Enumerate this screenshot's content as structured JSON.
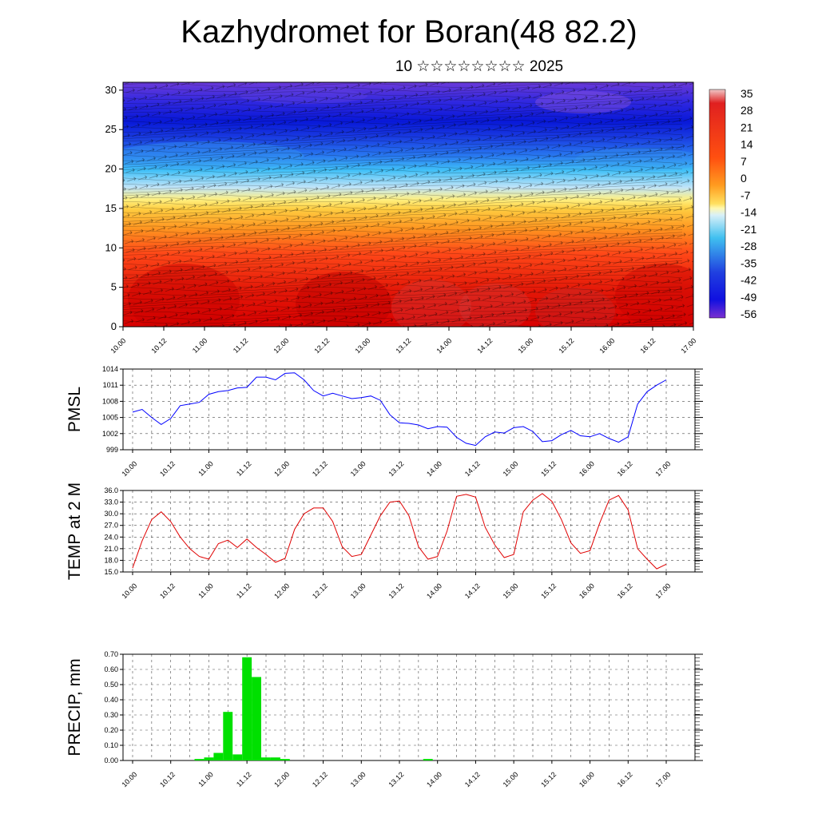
{
  "title": "Kazhydromet for Boran(48 82.2)",
  "subtitle": "10 ☆☆☆☆☆☆☆☆ 2025",
  "x_tick_labels": [
    "10.00",
    "10.12",
    "11.00",
    "11.12",
    "12.00",
    "12.12",
    "13.00",
    "13.12",
    "14.00",
    "14.12",
    "15.00",
    "15.12",
    "16.00",
    "16.12",
    "17.00"
  ],
  "chart_data": [
    {
      "type": "heatmap",
      "name": "cross-section",
      "y_ticks": [
        0,
        5,
        10,
        15,
        20,
        25,
        30
      ],
      "ylim": [
        0,
        31
      ],
      "x": [
        "10.00",
        "10.12",
        "11.00",
        "11.12",
        "12.00",
        "12.12",
        "13.00",
        "13.12",
        "14.00",
        "14.12",
        "15.00",
        "15.12",
        "16.00",
        "16.12",
        "17.00"
      ],
      "colorbar_labels": [
        "35",
        "28",
        "21",
        "14",
        "7",
        "0",
        "-7",
        "-14",
        "-21",
        "-28",
        "-35",
        "-42",
        "-49",
        "-56"
      ],
      "colors": {
        "hot": "#e00000",
        "warm": "#ff8a10",
        "yellow": "#ffe060",
        "cold_light": "#40c8f8",
        "cold": "#1020e0",
        "coldest": "#6030d0"
      }
    },
    {
      "type": "line",
      "ylabel": "PMSL",
      "y_ticks": [
        999,
        1002,
        1005,
        1008,
        1011,
        1014
      ],
      "ylim": [
        999,
        1014
      ],
      "color": "#0000ff",
      "values": [
        1006,
        1006.5,
        1005,
        1003.7,
        1004.8,
        1007.2,
        1007.5,
        1007.8,
        1009.3,
        1009.8,
        1010,
        1010.5,
        1010.6,
        1012.5,
        1012.5,
        1012,
        1013.2,
        1013.3,
        1012,
        1010,
        1009,
        1009.5,
        1009,
        1008.5,
        1008.7,
        1009,
        1008.2,
        1005.5,
        1004,
        1003.9,
        1003.6,
        1002.9,
        1003.3,
        1003.2,
        1001.3,
        1000.2,
        999.8,
        1001.4,
        1002.3,
        1002.1,
        1003.1,
        1003.3,
        1002.4,
        1000.5,
        1000.7,
        1001.8,
        1002.6,
        1001.6,
        1001.4,
        1002,
        1001.1,
        1000.4,
        1001.4,
        1007.5,
        1009.8,
        1011,
        1012
      ]
    },
    {
      "type": "line",
      "ylabel": "TEMP at 2 M",
      "y_ticks": [
        "15.0",
        "18.0",
        "21.0",
        "24.0",
        "27.0",
        "30.0",
        "33.0",
        "36.0"
      ],
      "ylim": [
        15,
        36
      ],
      "color": "#e00000",
      "values": [
        16,
        23,
        28.5,
        30.5,
        28,
        24,
        21,
        19,
        18.3,
        22.3,
        23.2,
        21.3,
        23.5,
        21.3,
        19.5,
        17.5,
        18.5,
        26,
        30,
        31.5,
        31.5,
        28,
        21.5,
        19,
        19.5,
        24.5,
        29.5,
        33,
        33.3,
        29.5,
        21.5,
        18.3,
        19,
        25.5,
        34.5,
        35,
        34.3,
        26.5,
        22,
        18.7,
        19.5,
        30.5,
        33.5,
        35.2,
        33.2,
        28.5,
        22.5,
        19.8,
        20.5,
        27.5,
        33.5,
        34.7,
        31,
        21,
        18.3,
        15.8,
        17
      ]
    },
    {
      "type": "bar",
      "ylabel": "PRECIP, mm",
      "y_ticks": [
        "0.00",
        "0.10",
        "0.20",
        "0.30",
        "0.40",
        "0.50",
        "0.60",
        "0.70"
      ],
      "ylim": [
        0,
        0.7
      ],
      "color": "#00e000",
      "values": [
        0,
        0,
        0,
        0,
        0,
        0,
        0,
        0.01,
        0.02,
        0.05,
        0.32,
        0.04,
        0.68,
        0.55,
        0.02,
        0.02,
        0.01,
        0,
        0,
        0,
        0,
        0,
        0,
        0,
        0,
        0,
        0,
        0,
        0,
        0,
        0,
        0.01,
        0,
        0,
        0,
        0,
        0,
        0,
        0,
        0,
        0,
        0,
        0,
        0,
        0,
        0,
        0,
        0,
        0,
        0,
        0,
        0,
        0,
        0,
        0,
        0,
        0
      ]
    }
  ]
}
